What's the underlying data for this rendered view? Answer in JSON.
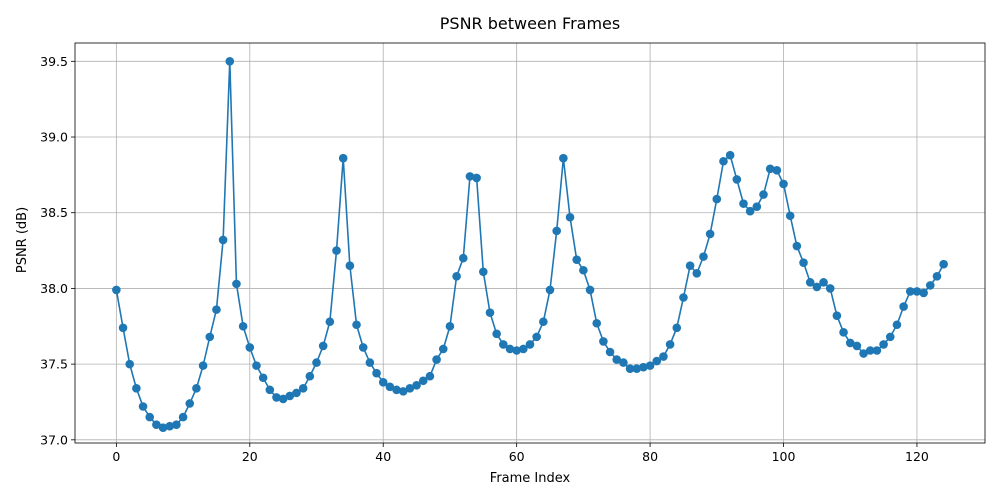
{
  "chart_data": {
    "type": "line",
    "title": "PSNR between Frames",
    "xlabel": "Frame Index",
    "ylabel": "PSNR (dB)",
    "xlim": [
      -6.2,
      130.2
    ],
    "ylim": [
      36.979,
      39.621
    ],
    "xticks": [
      0,
      20,
      40,
      60,
      80,
      100,
      120
    ],
    "yticks": [
      37.0,
      37.5,
      38.0,
      38.5,
      39.0,
      39.5
    ],
    "ytick_labels": [
      "37.0",
      "37.5",
      "38.0",
      "38.5",
      "39.0",
      "39.5"
    ],
    "grid": true,
    "color": "#1f77b4",
    "marker": "circle",
    "y": [
      37.99,
      37.74,
      37.5,
      37.34,
      37.22,
      37.15,
      37.1,
      37.08,
      37.09,
      37.1,
      37.15,
      37.24,
      37.34,
      37.49,
      37.68,
      37.86,
      38.32,
      39.5,
      38.03,
      37.75,
      37.61,
      37.49,
      37.41,
      37.33,
      37.28,
      37.27,
      37.29,
      37.31,
      37.34,
      37.42,
      37.51,
      37.62,
      37.78,
      38.25,
      38.86,
      38.15,
      37.76,
      37.61,
      37.51,
      37.44,
      37.38,
      37.35,
      37.33,
      37.32,
      37.34,
      37.36,
      37.39,
      37.42,
      37.53,
      37.6,
      37.75,
      38.08,
      38.2,
      38.74,
      38.73,
      38.11,
      37.84,
      37.7,
      37.63,
      37.6,
      37.59,
      37.6,
      37.63,
      37.68,
      37.78,
      37.99,
      38.38,
      38.86,
      38.47,
      38.19,
      38.12,
      37.99,
      37.77,
      37.65,
      37.58,
      37.53,
      37.51,
      37.47,
      37.47,
      37.48,
      37.49,
      37.52,
      37.55,
      37.63,
      37.74,
      37.94,
      38.15,
      38.1,
      38.21,
      38.36,
      38.59,
      38.84,
      38.88,
      38.72,
      38.56,
      38.51,
      38.54,
      38.62,
      38.79,
      38.78,
      38.69,
      38.48,
      38.28,
      38.17,
      38.04,
      38.01,
      38.04,
      38.0,
      37.82,
      37.71,
      37.64,
      37.62,
      37.57,
      37.59,
      37.59,
      37.63,
      37.68,
      37.76,
      37.88,
      37.98,
      37.98,
      37.97,
      38.02,
      38.08,
      38.16
    ]
  }
}
